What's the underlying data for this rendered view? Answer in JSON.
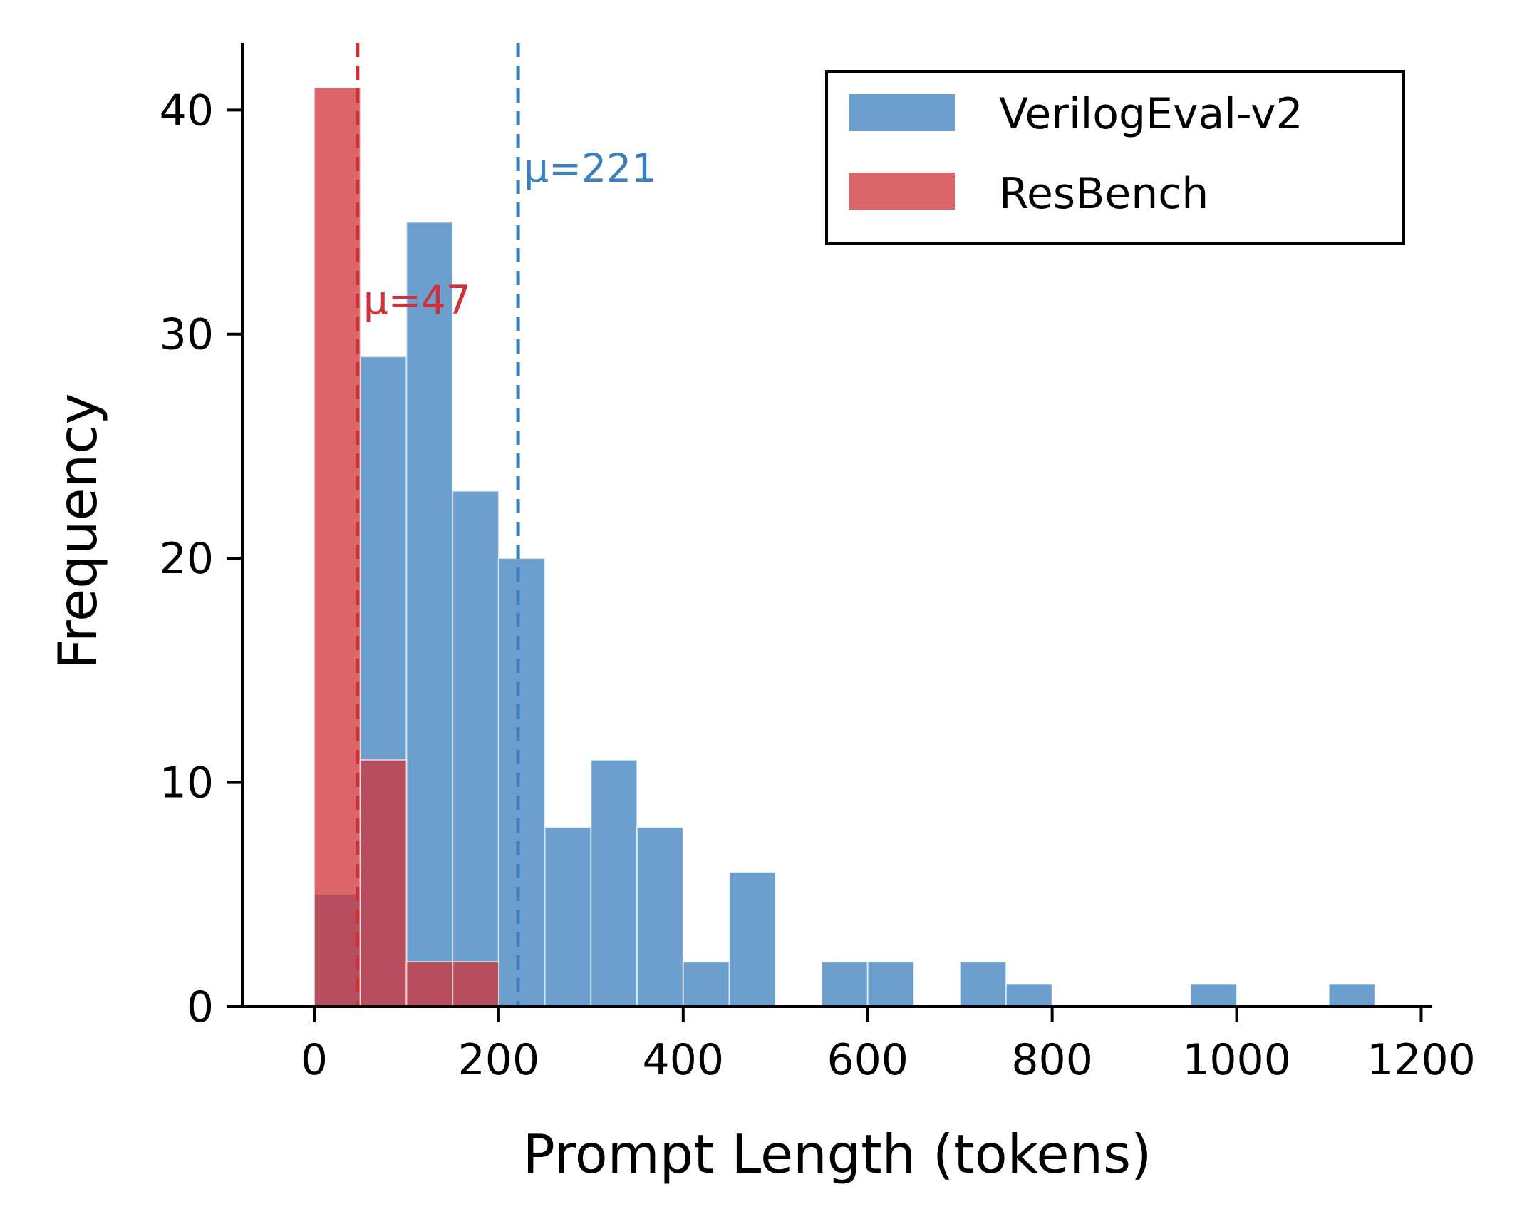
{
  "chart_data": {
    "type": "bar",
    "title": "",
    "xlabel": "Prompt Length (tokens)",
    "ylabel": "Frequency",
    "xlim": [
      -78,
      1212
    ],
    "ylim": [
      0,
      43
    ],
    "xticks": [
      0,
      200,
      400,
      600,
      800,
      1000,
      1200
    ],
    "yticks": [
      0,
      10,
      20,
      30,
      40
    ],
    "bin_width": 50,
    "series": [
      {
        "name": "VerilogEval-v2",
        "color": "#3b7fbd",
        "bins": [
          {
            "x0": 0,
            "count": 5
          },
          {
            "x0": 50,
            "count": 29
          },
          {
            "x0": 100,
            "count": 35
          },
          {
            "x0": 150,
            "count": 23
          },
          {
            "x0": 200,
            "count": 20
          },
          {
            "x0": 250,
            "count": 8
          },
          {
            "x0": 300,
            "count": 11
          },
          {
            "x0": 350,
            "count": 8
          },
          {
            "x0": 400,
            "count": 2
          },
          {
            "x0": 450,
            "count": 6
          },
          {
            "x0": 550,
            "count": 2
          },
          {
            "x0": 600,
            "count": 2
          },
          {
            "x0": 700,
            "count": 2
          },
          {
            "x0": 750,
            "count": 1
          },
          {
            "x0": 950,
            "count": 1
          },
          {
            "x0": 1100,
            "count": 1
          }
        ],
        "mean": 221,
        "mean_label": "μ=221"
      },
      {
        "name": "ResBench",
        "color": "#cf3136",
        "bins": [
          {
            "x0": 0,
            "count": 41
          },
          {
            "x0": 50,
            "count": 11
          },
          {
            "x0": 100,
            "count": 2
          },
          {
            "x0": 150,
            "count": 2
          }
        ],
        "mean": 47,
        "mean_label": "μ=47"
      }
    ],
    "legend": {
      "position": "top-right"
    }
  }
}
